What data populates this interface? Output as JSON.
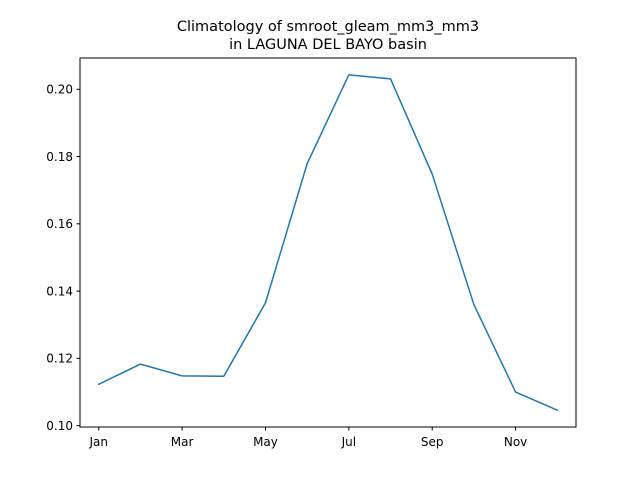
{
  "chart_data": {
    "type": "line",
    "title_line1": "Climatology of smroot_gleam_mm3_mm3",
    "title_line2": "in LAGUNA DEL BAYO basin",
    "xlabel": "",
    "ylabel": "",
    "x": [
      1,
      2,
      3,
      4,
      5,
      6,
      7,
      8,
      9,
      10,
      11,
      12
    ],
    "x_ticks": [
      1,
      3,
      5,
      7,
      9,
      11
    ],
    "x_tick_labels": [
      "Jan",
      "Mar",
      "May",
      "Jul",
      "Sep",
      "Nov"
    ],
    "xlim": [
      0.55,
      12.45
    ],
    "series": [
      {
        "values": [
          0.1123,
          0.1183,
          0.1148,
          0.1147,
          0.1365,
          0.1779,
          0.2043,
          0.2031,
          0.1748,
          0.136,
          0.11,
          0.1046
        ],
        "color": "#1f77b4"
      }
    ],
    "y_ticks": [
      0.1,
      0.12,
      0.14,
      0.16,
      0.18,
      0.2
    ],
    "y_tick_labels": [
      "0.10",
      "0.12",
      "0.14",
      "0.16",
      "0.18",
      "0.20"
    ],
    "ylim": [
      0.0996,
      0.2093
    ],
    "grid": false,
    "legend": "none"
  }
}
